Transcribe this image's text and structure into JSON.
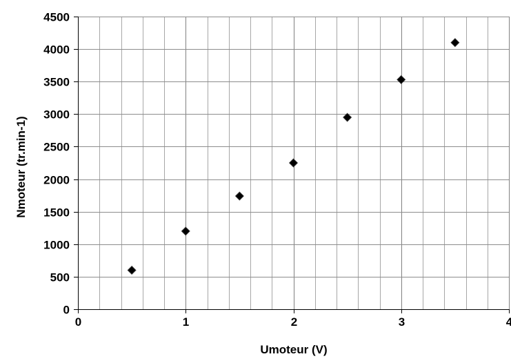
{
  "chart_data": {
    "type": "scatter",
    "title": "",
    "xlabel": "Umoteur (V)",
    "ylabel": "Nmoteur (tr.min-1)",
    "xlim": [
      0,
      4
    ],
    "ylim": [
      0,
      4500
    ],
    "x_ticks": [
      "0",
      "1",
      "2",
      "3",
      "4"
    ],
    "y_ticks": [
      "0",
      "500",
      "1000",
      "1500",
      "2000",
      "2500",
      "3000",
      "3500",
      "4000",
      "4500"
    ],
    "x_minor_step": 0.2,
    "grid": true,
    "legend": "none",
    "marker": "diamond",
    "marker_color": "#000000",
    "series": [
      {
        "x": [
          0.5,
          1.0,
          1.5,
          2.0,
          2.5,
          3.0,
          3.5
        ],
        "y": [
          600,
          1200,
          1740,
          2250,
          2950,
          3530,
          4100
        ]
      }
    ]
  }
}
